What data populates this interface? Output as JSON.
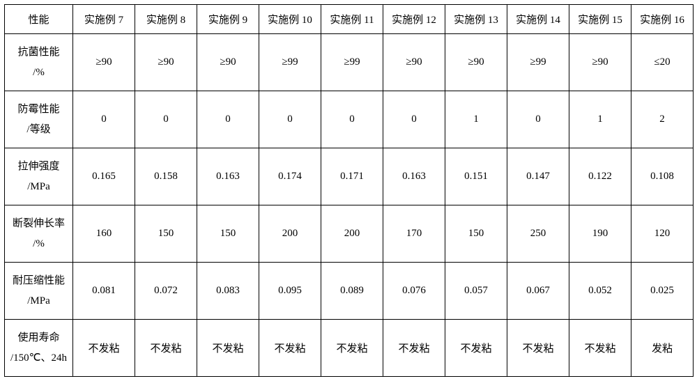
{
  "table": {
    "columns": [
      "性能",
      "实施例 7",
      "实施例 8",
      "实施例 9",
      "实施例 10",
      "实施例 11",
      "实施例 12",
      "实施例 13",
      "实施例 14",
      "实施例 15",
      "实施例 16"
    ],
    "rowHeaders": [
      "抗菌性能\n/%",
      "防霉性能\n/等级",
      "拉伸强度\n/MPa",
      "断裂伸长率\n/%",
      "耐压缩性能\n/MPa",
      "使用寿命\n/150℃、24h"
    ],
    "rows": [
      [
        "≥90",
        "≥90",
        "≥90",
        "≥99",
        "≥99",
        "≥90",
        "≥90",
        "≥99",
        "≥90",
        "≤20"
      ],
      [
        "0",
        "0",
        "0",
        "0",
        "0",
        "0",
        "1",
        "0",
        "1",
        "2"
      ],
      [
        "0.165",
        "0.158",
        "0.163",
        "0.174",
        "0.171",
        "0.163",
        "0.151",
        "0.147",
        "0.122",
        "0.108"
      ],
      [
        "160",
        "150",
        "150",
        "200",
        "200",
        "170",
        "150",
        "250",
        "190",
        "120"
      ],
      [
        "0.081",
        "0.072",
        "0.083",
        "0.095",
        "0.089",
        "0.076",
        "0.057",
        "0.067",
        "0.052",
        "0.025"
      ],
      [
        "不发粘",
        "不发粘",
        "不发粘",
        "不发粘",
        "不发粘",
        "不发粘",
        "不发粘",
        "不发粘",
        "不发粘",
        "发粘"
      ]
    ],
    "border_color": "#000000",
    "background_color": "#ffffff",
    "text_color": "#000000",
    "font_size": 15,
    "first_col_width": 98,
    "data_col_width": 89,
    "header_row_height": 42,
    "body_row_height": 78,
    "last_row_height": 60
  }
}
